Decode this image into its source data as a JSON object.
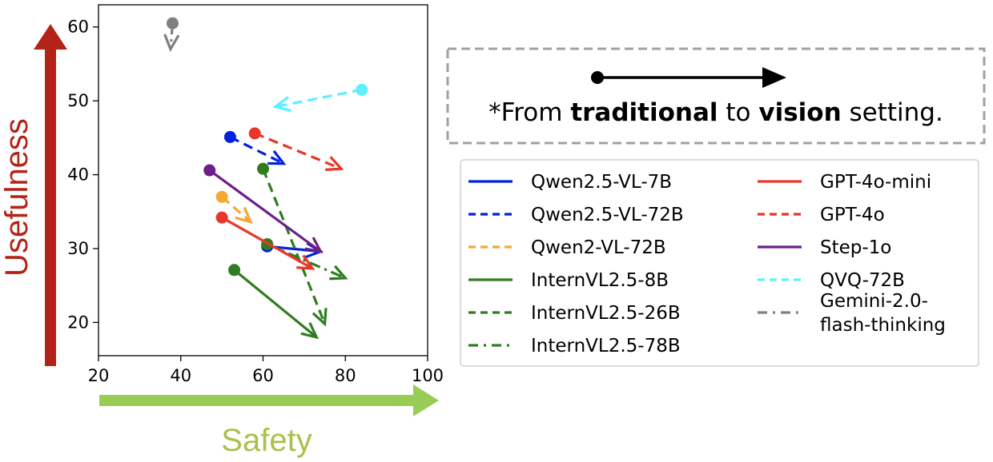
{
  "chart_data": {
    "type": "scatter",
    "xlabel": "Safety",
    "ylabel": "Usefulness",
    "xlim": [
      20,
      100
    ],
    "ylim": [
      15.5,
      63
    ],
    "x_ticks": [
      20,
      40,
      60,
      80,
      100
    ],
    "y_ticks": [
      20,
      30,
      40,
      50,
      60
    ],
    "grid": false,
    "legend_position": "right",
    "note": {
      "prefix": "*From ",
      "bold1": "traditional",
      "middle": " to ",
      "bold2": "vision",
      "suffix": " setting."
    },
    "series": [
      {
        "name": "Qwen2.5-VL-7B",
        "color": "#0022dd",
        "style": "solid",
        "from": [
          61,
          30.3
        ],
        "to": [
          74,
          29.6
        ]
      },
      {
        "name": "Qwen2.5-VL-72B",
        "color": "#0022dd",
        "style": "dashed",
        "from": [
          52,
          45.1
        ],
        "to": [
          65,
          41.5
        ]
      },
      {
        "name": "Qwen2-VL-72B",
        "color": "#f5a733",
        "style": "dashed",
        "from": [
          50,
          37
        ],
        "to": [
          57,
          33.6
        ]
      },
      {
        "name": "InternVL2.5-8B",
        "color": "#2f7d1f",
        "style": "solid",
        "from": [
          53,
          27.1
        ],
        "to": [
          73,
          18
        ]
      },
      {
        "name": "InternVL2.5-26B",
        "color": "#2f7d1f",
        "style": "dashed",
        "from": [
          60,
          40.8
        ],
        "to": [
          75,
          19.8
        ]
      },
      {
        "name": "InternVL2.5-78B",
        "color": "#2f7d1f",
        "style": "dashdot",
        "from": [
          61,
          30.6
        ],
        "to": [
          80,
          26
        ]
      },
      {
        "name": "GPT-4o-mini",
        "color": "#e8362a",
        "style": "solid",
        "from": [
          50,
          34.2
        ],
        "to": [
          72,
          27.3
        ]
      },
      {
        "name": "GPT-4o",
        "color": "#e8362a",
        "style": "dashed",
        "from": [
          58,
          45.6
        ],
        "to": [
          79,
          40.8
        ]
      },
      {
        "name": "Step-1o",
        "color": "#6b1f8a",
        "style": "solid",
        "from": [
          47,
          40.6
        ],
        "to": [
          74,
          29.6
        ]
      },
      {
        "name": "QVQ-72B",
        "color": "#5ef0ff",
        "style": "dashed",
        "from": [
          84,
          51.5
        ],
        "to": [
          63,
          49.2
        ]
      },
      {
        "name": "Gemini-2.0-flash-thinking",
        "name_lines": [
          "Gemini-2.0-",
          "flash-thinking"
        ],
        "color": "#808080",
        "style": "dashdot",
        "from": [
          38,
          60.5
        ],
        "to": [
          37.5,
          57
        ]
      }
    ]
  }
}
